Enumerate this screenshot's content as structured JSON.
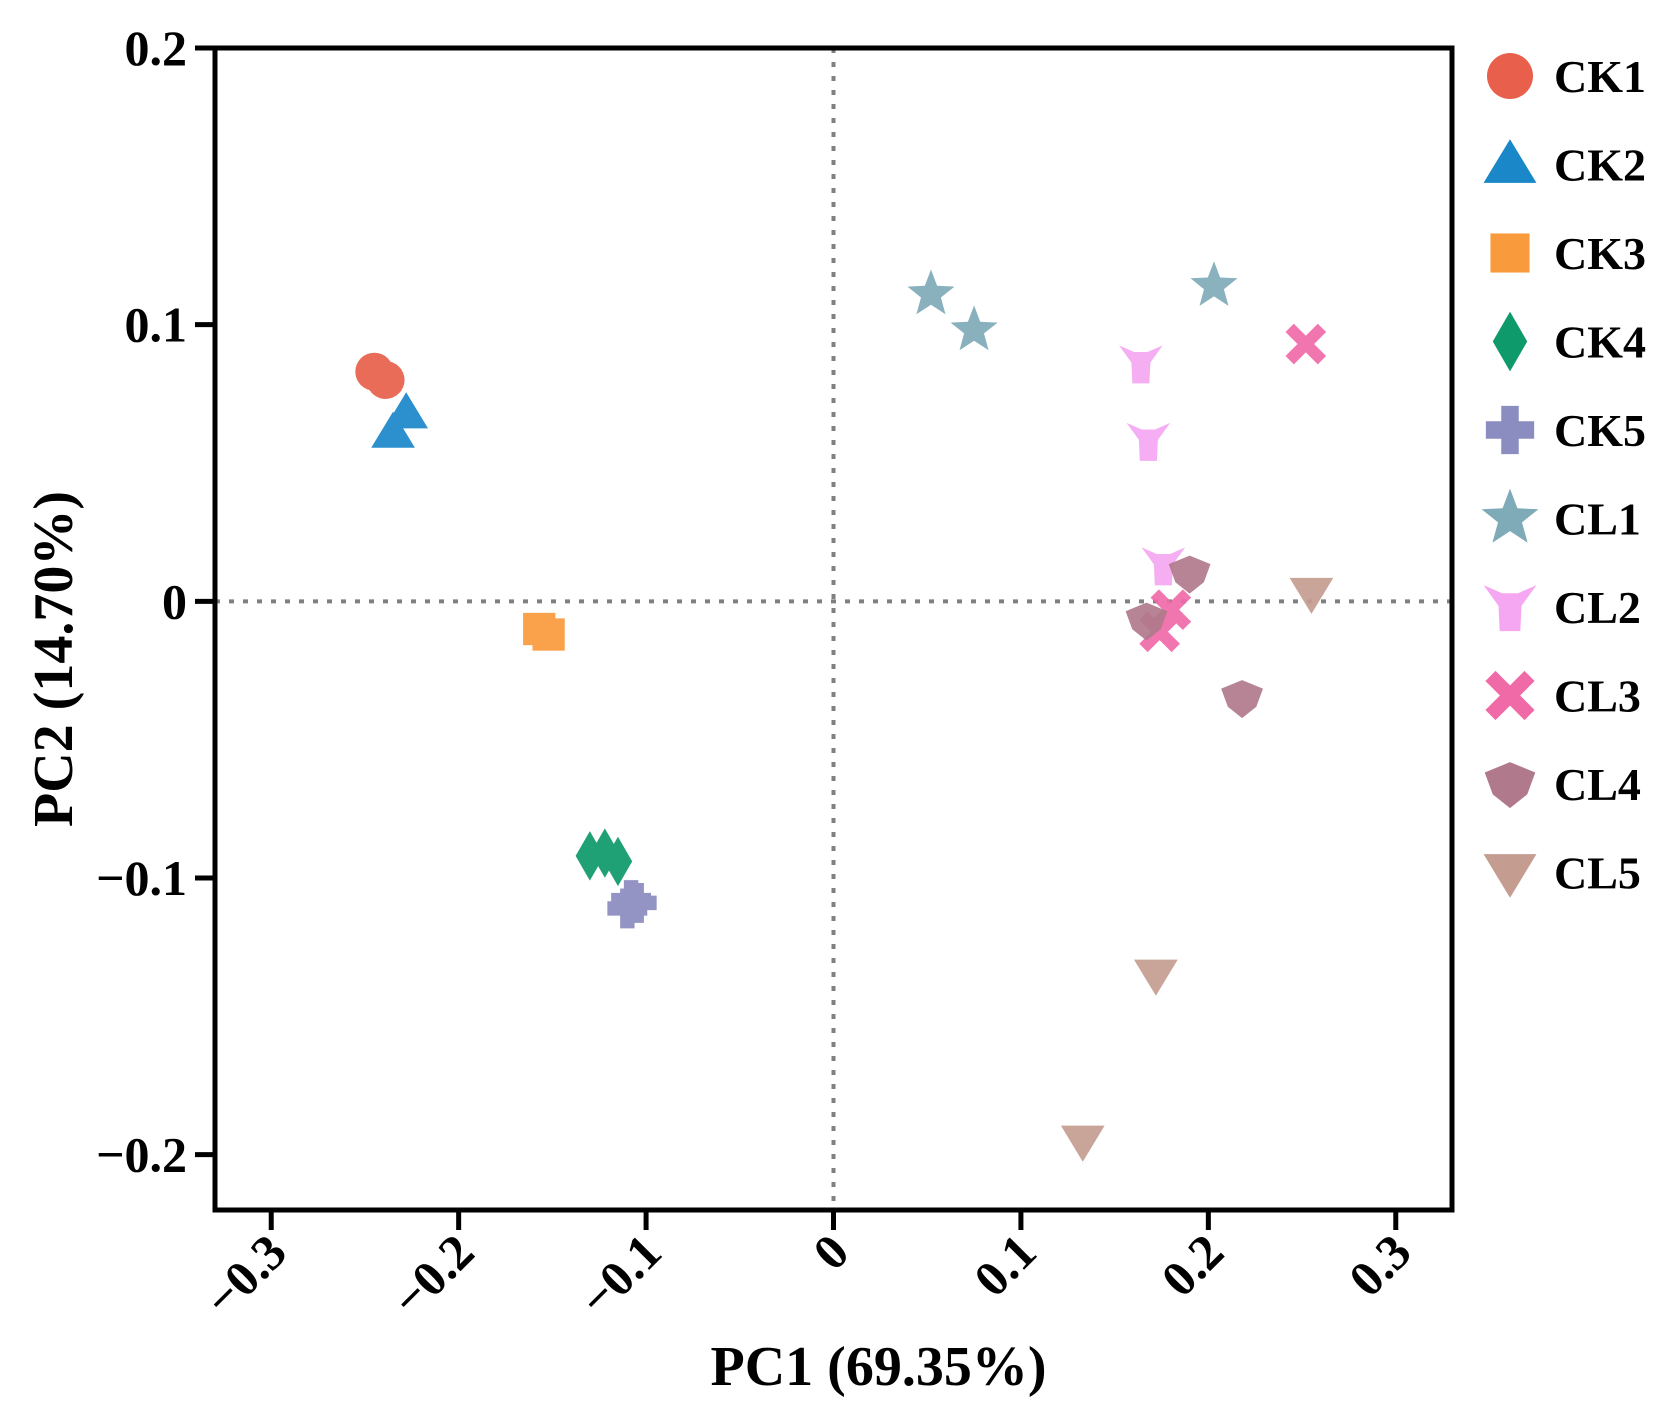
{
  "chart_data": {
    "type": "scatter",
    "title": "",
    "xlabel": "PC1 (69.35%)",
    "ylabel": "PC2 (14.70%)",
    "xlim": [
      -0.33,
      0.33
    ],
    "ylim": [
      -0.22,
      0.2
    ],
    "xticks": [
      -0.3,
      -0.2,
      -0.1,
      0,
      0.1,
      0.2,
      0.3
    ],
    "xtick_labels": [
      "−0.3",
      "−0.2",
      "−0.1",
      "0",
      "0.1",
      "0.2",
      "0.3"
    ],
    "yticks": [
      0.2,
      0.1,
      0,
      -0.1,
      -0.2
    ],
    "ytick_labels": [
      "0.2",
      "0.1",
      "0",
      "−0.1",
      "−0.2"
    ],
    "reference_lines": {
      "x": 0,
      "y": 0,
      "style": "dotted"
    },
    "legend_position": "right",
    "series": [
      {
        "name": "CK1",
        "marker": "circle",
        "color": "#E8604C",
        "points": [
          [
            -0.245,
            0.083
          ],
          [
            -0.239,
            0.08
          ]
        ]
      },
      {
        "name": "CK2",
        "marker": "triangle-up",
        "color": "#1A87C9",
        "points": [
          [
            -0.228,
            0.068
          ],
          [
            -0.235,
            0.061
          ]
        ]
      },
      {
        "name": "CK3",
        "marker": "square",
        "color": "#F99A3C",
        "points": [
          [
            -0.157,
            -0.01
          ],
          [
            -0.152,
            -0.012
          ]
        ]
      },
      {
        "name": "CK4",
        "marker": "diamond",
        "color": "#0E9A6A",
        "points": [
          [
            -0.13,
            -0.092
          ],
          [
            -0.122,
            -0.091
          ],
          [
            -0.115,
            -0.094
          ]
        ]
      },
      {
        "name": "CK5",
        "marker": "plus",
        "color": "#8B8CC0",
        "points": [
          [
            -0.108,
            -0.108
          ],
          [
            -0.11,
            -0.111
          ],
          [
            -0.105,
            -0.109
          ]
        ]
      },
      {
        "name": "CL1",
        "marker": "star",
        "color": "#7FAAB8",
        "points": [
          [
            0.052,
            0.111
          ],
          [
            0.075,
            0.098
          ],
          [
            0.203,
            0.114
          ]
        ]
      },
      {
        "name": "CL2",
        "marker": "tri-y",
        "color": "#F5A7F2",
        "points": [
          [
            0.164,
            0.086
          ],
          [
            0.168,
            0.058
          ],
          [
            0.176,
            0.013
          ]
        ]
      },
      {
        "name": "CL3",
        "marker": "x-cross",
        "color": "#F06AA8",
        "points": [
          [
            0.252,
            0.093
          ],
          [
            0.18,
            -0.003
          ],
          [
            0.174,
            -0.011
          ]
        ]
      },
      {
        "name": "CL4",
        "marker": "pentagon-down",
        "color": "#B07A8C",
        "points": [
          [
            0.19,
            0.01
          ],
          [
            0.167,
            -0.007
          ],
          [
            0.218,
            -0.035
          ]
        ]
      },
      {
        "name": "CL5",
        "marker": "triangle-down",
        "color": "#C49C90",
        "points": [
          [
            0.255,
            0.003
          ],
          [
            0.172,
            -0.135
          ],
          [
            0.133,
            -0.195
          ]
        ]
      }
    ]
  }
}
